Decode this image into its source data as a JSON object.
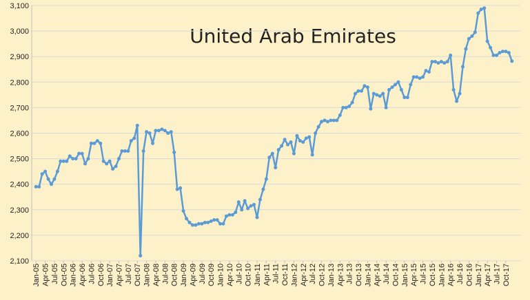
{
  "chart_data": {
    "type": "line",
    "title": "United Arab Emirates",
    "categories": [
      "Jan-05",
      null,
      null,
      "Apr-05",
      null,
      null,
      "Jul-05",
      null,
      null,
      "Oct-05",
      null,
      null,
      "Jan-06",
      null,
      null,
      "Apr-06",
      null,
      null,
      "Jul-06",
      null,
      null,
      "Oct-06",
      null,
      null,
      "Jan-07",
      null,
      null,
      "Apr-07",
      null,
      null,
      "Jul-07",
      null,
      null,
      "Oct-07",
      null,
      null,
      "Jan-08",
      null,
      null,
      "Apr-08",
      null,
      null,
      "Jul-08",
      null,
      null,
      "Oct-08",
      null,
      null,
      "Jan-09",
      null,
      null,
      "Apr-09",
      null,
      null,
      "Jul-09",
      null,
      null,
      "Oct-09",
      null,
      null,
      "Jan-10",
      null,
      null,
      "Apr-10",
      null,
      null,
      "Jul-10",
      null,
      null,
      "Oct-10",
      null,
      null,
      "Jan-11",
      null,
      null,
      "Apr-11",
      null,
      null,
      "Jul-11",
      null,
      null,
      "Oct-11",
      null,
      null,
      "Jan-12",
      null,
      null,
      "Apr-12",
      null,
      null,
      "Jul-12",
      null,
      null,
      "Oct-12",
      null,
      null,
      "Jan-13",
      null,
      null,
      "Apr-13",
      null,
      null,
      "Jul-13",
      null,
      null,
      "Oct-13",
      null,
      null,
      "Jan-14",
      null,
      null,
      "Apr-14",
      null,
      null,
      "Jul-14",
      null,
      null,
      "Oct-14",
      null,
      null,
      "Jan-15",
      null,
      null,
      "Apr-15",
      null,
      null,
      "Jul-15",
      null,
      null,
      "Oct-15",
      null,
      null,
      "Jan-16",
      null,
      null,
      "Apr-16",
      null,
      null,
      "Jul-16",
      null,
      null,
      "Oct-16",
      null,
      null,
      "Jan-17",
      null,
      null,
      "Apr-17",
      null,
      null,
      "Jul-17",
      null,
      null,
      "Oct-17",
      null,
      null
    ],
    "values": [
      2390,
      2390,
      2440,
      2450,
      2420,
      2400,
      2420,
      2450,
      2490,
      2490,
      2490,
      2510,
      2500,
      2500,
      2520,
      2520,
      2480,
      2500,
      2560,
      2560,
      2570,
      2560,
      2490,
      2480,
      2490,
      2460,
      2470,
      2500,
      2530,
      2530,
      2530,
      2570,
      2580,
      2630,
      2120,
      2530,
      2605,
      2600,
      2560,
      2610,
      2610,
      2615,
      2610,
      2600,
      2605,
      2525,
      2380,
      2385,
      2295,
      2265,
      2250,
      2240,
      2240,
      2245,
      2245,
      2250,
      2250,
      2255,
      2260,
      2260,
      2245,
      2245,
      2275,
      2280,
      2280,
      2290,
      2330,
      2300,
      2335,
      2305,
      2315,
      2320,
      2270,
      2340,
      2380,
      2420,
      2505,
      2520,
      2465,
      2535,
      2550,
      2575,
      2555,
      2565,
      2520,
      2590,
      2570,
      2565,
      2580,
      2585,
      2515,
      2600,
      2625,
      2645,
      2650,
      2645,
      2650,
      2650,
      2650,
      2670,
      2700,
      2700,
      2705,
      2720,
      2755,
      2765,
      2765,
      2785,
      2780,
      2695,
      2755,
      2750,
      2745,
      2755,
      2700,
      2770,
      2780,
      2790,
      2800,
      2770,
      2740,
      2740,
      2790,
      2820,
      2820,
      2815,
      2820,
      2845,
      2840,
      2880,
      2880,
      2875,
      2880,
      2875,
      2880,
      2905,
      2770,
      2725,
      2755,
      2860,
      2930,
      2970,
      2980,
      2995,
      3070,
      3085,
      3090,
      2960,
      2935,
      2905,
      2905,
      2915,
      2920,
      2920,
      2915,
      2882
    ],
    "color": "#5b9bd5",
    "ylim": [
      2100,
      3100
    ],
    "yticks": [
      {
        "value": 2100,
        "label": "2,100"
      },
      {
        "value": 2200,
        "label": "2,200"
      },
      {
        "value": 2300,
        "label": "2,300"
      },
      {
        "value": 2400,
        "label": "2,400"
      },
      {
        "value": 2500,
        "label": "2,500"
      },
      {
        "value": 2600,
        "label": "2,600"
      },
      {
        "value": 2700,
        "label": "2,700"
      },
      {
        "value": 2800,
        "label": "2,800"
      },
      {
        "value": 2900,
        "label": "2,900"
      },
      {
        "value": 3000,
        "label": "3,000"
      },
      {
        "value": 3100,
        "label": "3,100"
      }
    ],
    "grid": true
  }
}
